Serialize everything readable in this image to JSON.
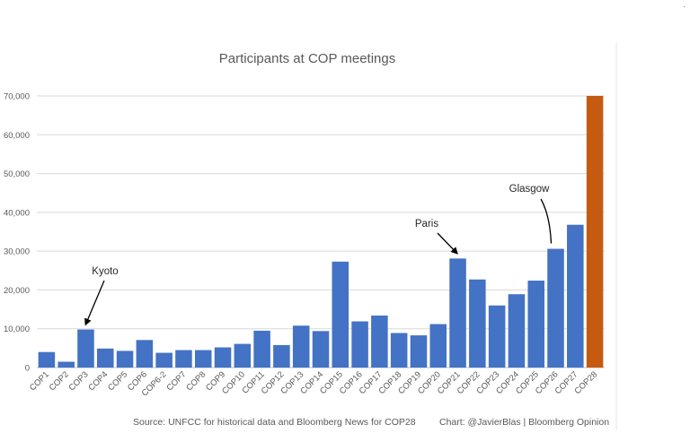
{
  "chart_data": {
    "type": "bar",
    "title": "Participants at COP meetings",
    "xlabel": "",
    "ylabel": "",
    "ylim": [
      0,
      70000
    ],
    "yticks": [
      0,
      10000,
      20000,
      30000,
      40000,
      50000,
      60000,
      70000
    ],
    "ytick_labels": [
      "0",
      "10,000",
      "20,000",
      "30,000",
      "40,000",
      "50,000",
      "60,000",
      "70,000"
    ],
    "grid": true,
    "categories": [
      "COP1",
      "COP2",
      "COP3",
      "COP4",
      "COP5",
      "COP6",
      "COP6-2",
      "COP7",
      "COP8",
      "COP9",
      "COP10",
      "COP11",
      "COP12",
      "COP13",
      "COP14",
      "COP15",
      "COP16",
      "COP17",
      "COP18",
      "COP19",
      "COP20",
      "COP21",
      "COP22",
      "COP23",
      "COP24",
      "COP25",
      "COP26",
      "COP27",
      "COP28"
    ],
    "values": [
      4000,
      1500,
      9800,
      4900,
      4300,
      7100,
      3800,
      4500,
      4500,
      5200,
      6100,
      9500,
      5800,
      10800,
      9400,
      27300,
      11900,
      13400,
      8900,
      8300,
      11200,
      28100,
      22700,
      16000,
      18900,
      22400,
      30600,
      36800,
      70000
    ],
    "bar_colors": [
      "#4472c4",
      "#4472c4",
      "#4472c4",
      "#4472c4",
      "#4472c4",
      "#4472c4",
      "#4472c4",
      "#4472c4",
      "#4472c4",
      "#4472c4",
      "#4472c4",
      "#4472c4",
      "#4472c4",
      "#4472c4",
      "#4472c4",
      "#4472c4",
      "#4472c4",
      "#4472c4",
      "#4472c4",
      "#4472c4",
      "#4472c4",
      "#4472c4",
      "#4472c4",
      "#4472c4",
      "#4472c4",
      "#4472c4",
      "#4472c4",
      "#4472c4",
      "#c55a11"
    ],
    "annotations": [
      {
        "label": "Kyoto",
        "category": "COP3"
      },
      {
        "label": "Paris",
        "category": "COP21"
      },
      {
        "label": "Glasgow",
        "category": "COP26"
      }
    ],
    "source_note": "Source: UNFCC for historical data and Bloomberg News for COP28",
    "credit_note": "Chart: @JavierBlas | Bloomberg Opinion"
  },
  "corner_mark": "."
}
